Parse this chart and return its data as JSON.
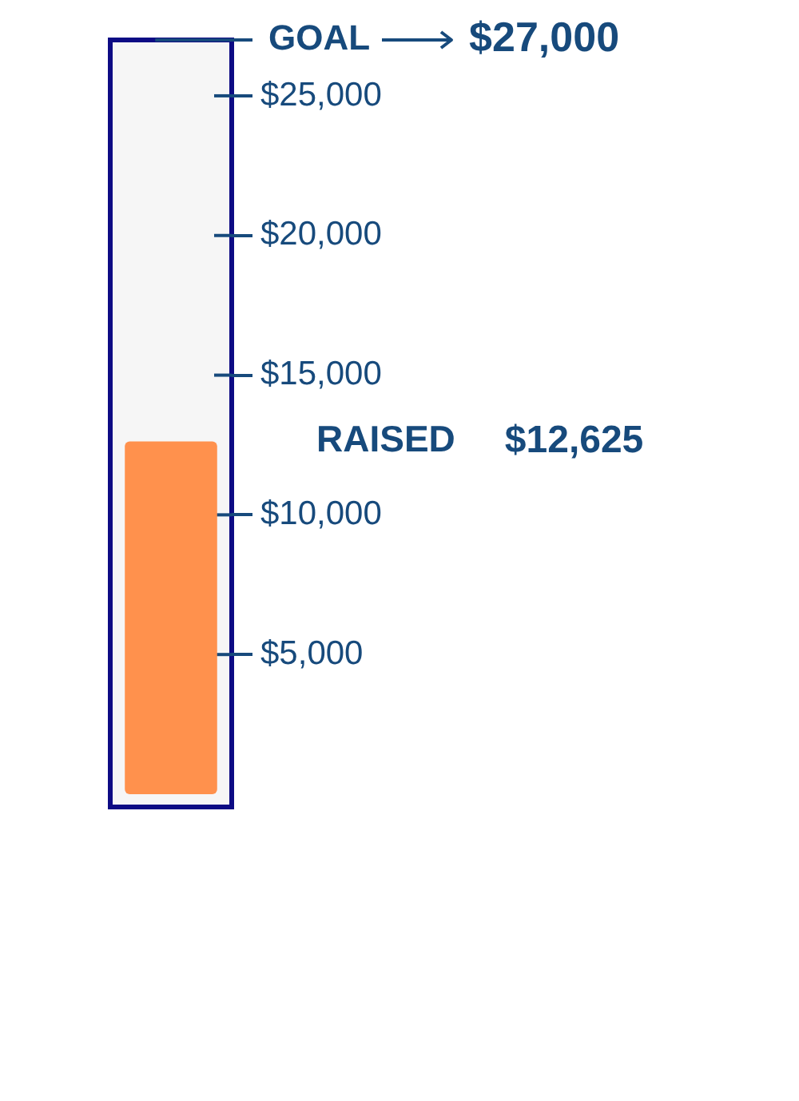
{
  "chart_data": {
    "type": "bar",
    "categories": [
      null
    ],
    "values": [
      12625
    ],
    "color": "#ff914d",
    "ylim": [
      0,
      27000
    ],
    "yticks": [
      {
        "value": 5000,
        "label": "$5,000"
      },
      {
        "value": 10000,
        "label": "$10,000"
      },
      {
        "value": 15000,
        "label": "$15,000"
      },
      {
        "value": 20000,
        "label": "$20,000"
      },
      {
        "value": 25000,
        "label": "$25,000"
      }
    ],
    "ref_lines": [
      {
        "axis": "y",
        "value": 27000,
        "label": "GOAL",
        "color": "#174a7c"
      }
    ],
    "annotations": [
      "$27,000",
      "RAISED",
      "$12,625"
    ],
    "tick_labels": "y"
  }
}
